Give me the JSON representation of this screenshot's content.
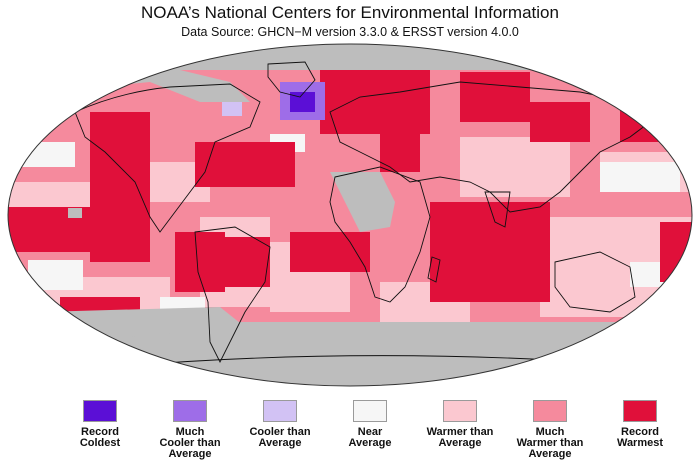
{
  "header": {
    "title": "NOAA’s National Centers for Environmental Information",
    "subtitle": "Data Source: GHCN−M version 3.3.0 & ERSST version 4.0.0"
  },
  "colors": {
    "record_coldest": "#5b0fd6",
    "much_cooler": "#9e6de8",
    "cooler": "#d2c2f4",
    "near_average": "#f6f6f6",
    "warmer": "#fbc8d0",
    "much_warmer": "#f58a9d",
    "record_warmest": "#e0103a",
    "no_data": "#bdbdbd"
  },
  "legend": [
    {
      "label": "Record\nColdest",
      "color": "#5b0fd6"
    },
    {
      "label": "Much\nCooler than\nAverage",
      "color": "#9e6de8"
    },
    {
      "label": "Cooler than\nAverage",
      "color": "#d2c2f4"
    },
    {
      "label": "Near\nAverage",
      "color": "#f6f6f6"
    },
    {
      "label": "Warmer than\nAverage",
      "color": "#fbc8d0"
    },
    {
      "label": "Much\nWarmer than\nAverage",
      "color": "#f58a9d"
    },
    {
      "label": "Record\nWarmest",
      "color": "#e0103a"
    }
  ]
}
